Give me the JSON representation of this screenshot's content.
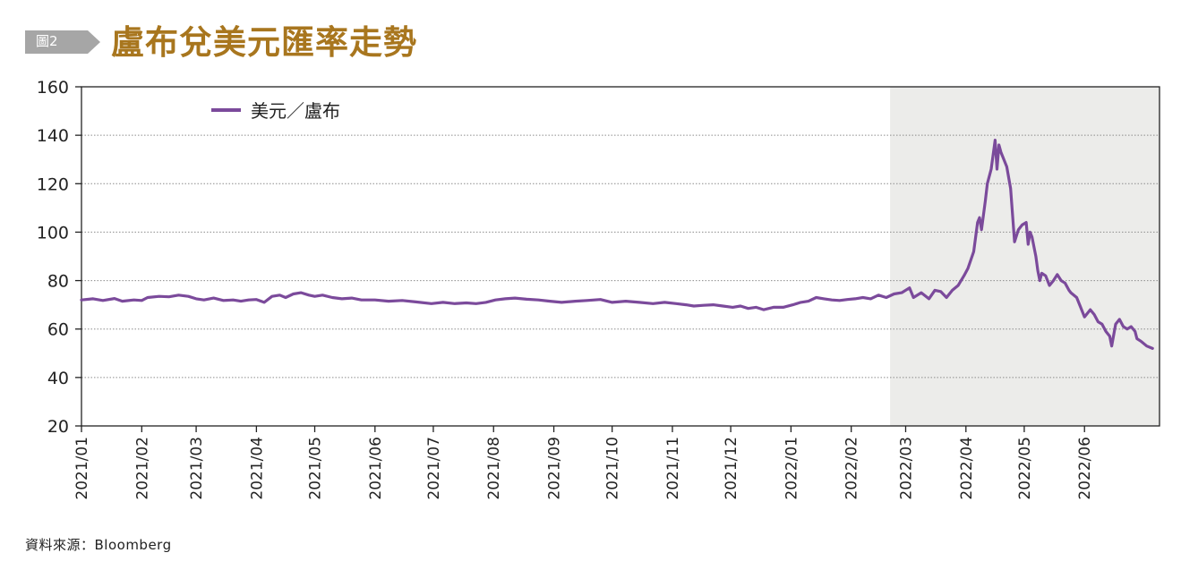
{
  "header": {
    "figure_tag": "圖2",
    "title": "盧布兌美元匯率走勢"
  },
  "source": "資料來源：Bloomberg",
  "colors": {
    "line": "#7b4a9b",
    "shade": "#ececea",
    "title": "#a8761e",
    "tag": "#a6a6a6",
    "grid": "#8c8c8c"
  },
  "chart_data": {
    "type": "line",
    "title": "盧布兌美元匯率走勢",
    "xlabel": "",
    "ylabel": "",
    "ylim": [
      20,
      160
    ],
    "yticks": [
      20,
      40,
      60,
      80,
      100,
      120,
      140,
      160
    ],
    "xticks": [
      "2021/01",
      "2021/02",
      "2021/03",
      "2021/04",
      "2021/05",
      "2021/06",
      "2021/07",
      "2021/08",
      "2021/09",
      "2021/10",
      "2021/11",
      "2021/12",
      "2022/01",
      "2022/02",
      "2022/03",
      "2022/04",
      "2022/05",
      "2022/06"
    ],
    "grid": "horizontal dotted",
    "legend": "top-left",
    "shaded_region": {
      "from": "2022-02-21",
      "to": "2022-06-30"
    },
    "series": [
      {
        "name": "美元／盧布",
        "points": [
          [
            "2021-01-01",
            72.0
          ],
          [
            "2021-01-07",
            72.5
          ],
          [
            "2021-01-12",
            71.8
          ],
          [
            "2021-01-18",
            72.6
          ],
          [
            "2021-01-22",
            71.5
          ],
          [
            "2021-01-28",
            72.0
          ],
          [
            "2021-02-01",
            71.8
          ],
          [
            "2021-02-04",
            73.0
          ],
          [
            "2021-02-10",
            73.5
          ],
          [
            "2021-02-15",
            73.3
          ],
          [
            "2021-02-20",
            74.0
          ],
          [
            "2021-02-25",
            73.5
          ],
          [
            "2021-03-01",
            72.5
          ],
          [
            "2021-03-05",
            72.0
          ],
          [
            "2021-03-10",
            72.8
          ],
          [
            "2021-03-15",
            71.8
          ],
          [
            "2021-03-20",
            72.0
          ],
          [
            "2021-03-24",
            71.5
          ],
          [
            "2021-03-28",
            72.0
          ],
          [
            "2021-04-01",
            72.2
          ],
          [
            "2021-04-05",
            71.0
          ],
          [
            "2021-04-09",
            73.5
          ],
          [
            "2021-04-13",
            74.0
          ],
          [
            "2021-04-16",
            73.0
          ],
          [
            "2021-04-20",
            74.5
          ],
          [
            "2021-04-24",
            75.0
          ],
          [
            "2021-04-28",
            74.0
          ],
          [
            "2021-05-01",
            73.5
          ],
          [
            "2021-05-05",
            74.0
          ],
          [
            "2021-05-10",
            73.0
          ],
          [
            "2021-05-15",
            72.5
          ],
          [
            "2021-05-20",
            72.8
          ],
          [
            "2021-05-25",
            72.0
          ],
          [
            "2021-06-01",
            72.0
          ],
          [
            "2021-06-08",
            71.5
          ],
          [
            "2021-06-15",
            71.8
          ],
          [
            "2021-06-22",
            71.2
          ],
          [
            "2021-06-30",
            70.5
          ],
          [
            "2021-07-06",
            71.0
          ],
          [
            "2021-07-12",
            70.5
          ],
          [
            "2021-07-18",
            70.8
          ],
          [
            "2021-07-23",
            70.5
          ],
          [
            "2021-07-28",
            71.0
          ],
          [
            "2021-08-02",
            72.0
          ],
          [
            "2021-08-07",
            72.5
          ],
          [
            "2021-08-12",
            72.8
          ],
          [
            "2021-08-18",
            72.3
          ],
          [
            "2021-08-24",
            72.0
          ],
          [
            "2021-08-30",
            71.5
          ],
          [
            "2021-09-05",
            71.0
          ],
          [
            "2021-09-12",
            71.5
          ],
          [
            "2021-09-18",
            71.8
          ],
          [
            "2021-09-25",
            72.2
          ],
          [
            "2021-10-01",
            71.0
          ],
          [
            "2021-10-08",
            71.5
          ],
          [
            "2021-10-15",
            71.0
          ],
          [
            "2021-10-22",
            70.5
          ],
          [
            "2021-10-28",
            71.0
          ],
          [
            "2021-11-03",
            70.5
          ],
          [
            "2021-11-08",
            70.0
          ],
          [
            "2021-11-12",
            69.5
          ],
          [
            "2021-11-17",
            69.8
          ],
          [
            "2021-11-22",
            70.0
          ],
          [
            "2021-11-27",
            69.5
          ],
          [
            "2021-12-02",
            69.0
          ],
          [
            "2021-12-06",
            69.5
          ],
          [
            "2021-12-10",
            68.5
          ],
          [
            "2021-12-14",
            69.0
          ],
          [
            "2021-12-18",
            68.0
          ],
          [
            "2021-12-23",
            69.0
          ],
          [
            "2021-12-28",
            69.0
          ],
          [
            "2022-01-02",
            70.0
          ],
          [
            "2022-01-06",
            71.0
          ],
          [
            "2022-01-10",
            71.5
          ],
          [
            "2022-01-14",
            73.0
          ],
          [
            "2022-01-18",
            72.5
          ],
          [
            "2022-01-22",
            72.0
          ],
          [
            "2022-01-26",
            71.8
          ],
          [
            "2022-01-30",
            72.2
          ],
          [
            "2022-02-03",
            72.5
          ],
          [
            "2022-02-07",
            73.0
          ],
          [
            "2022-02-11",
            72.5
          ],
          [
            "2022-02-15",
            74.0
          ],
          [
            "2022-02-19",
            73.0
          ],
          [
            "2022-02-23",
            74.5
          ],
          [
            "2022-02-27",
            75.0
          ],
          [
            "2022-03-03",
            77.0
          ],
          [
            "2022-03-05",
            73.0
          ],
          [
            "2022-03-09",
            75.0
          ],
          [
            "2022-03-13",
            72.5
          ],
          [
            "2022-03-16",
            76.0
          ],
          [
            "2022-03-19",
            75.5
          ],
          [
            "2022-03-22",
            73.0
          ],
          [
            "2022-03-25",
            76.0
          ],
          [
            "2022-03-28",
            78.0
          ],
          [
            "2022-03-31",
            82.0
          ],
          [
            "2022-04-02",
            85.0
          ],
          [
            "2022-04-05",
            92.0
          ],
          [
            "2022-04-07",
            104.0
          ],
          [
            "2022-04-08",
            106.0
          ],
          [
            "2022-04-09",
            101.0
          ],
          [
            "2022-04-11",
            113.0
          ],
          [
            "2022-04-12",
            120.0
          ],
          [
            "2022-04-14",
            126.0
          ],
          [
            "2022-04-15",
            132.0
          ],
          [
            "2022-04-16",
            138.0
          ],
          [
            "2022-04-17",
            126.0
          ],
          [
            "2022-04-18",
            136.0
          ],
          [
            "2022-04-19",
            133.0
          ],
          [
            "2022-04-22",
            127.0
          ],
          [
            "2022-04-24",
            118.0
          ],
          [
            "2022-04-26",
            96.0
          ],
          [
            "2022-04-28",
            101.0
          ],
          [
            "2022-04-30",
            103.0
          ],
          [
            "2022-05-02",
            104.0
          ],
          [
            "2022-05-03",
            95.0
          ],
          [
            "2022-05-04",
            100.0
          ],
          [
            "2022-05-05",
            98.0
          ],
          [
            "2022-05-07",
            90.0
          ],
          [
            "2022-05-08",
            84.0
          ],
          [
            "2022-05-09",
            80.0
          ],
          [
            "2022-05-10",
            83.0
          ],
          [
            "2022-05-12",
            82.0
          ],
          [
            "2022-05-14",
            78.0
          ],
          [
            "2022-05-16",
            80.0
          ],
          [
            "2022-05-18",
            82.5
          ],
          [
            "2022-05-20",
            80.0
          ],
          [
            "2022-05-22",
            79.0
          ],
          [
            "2022-05-24",
            76.0
          ],
          [
            "2022-05-25",
            75.0
          ],
          [
            "2022-05-28",
            73.0
          ],
          [
            "2022-05-30",
            69.0
          ],
          [
            "2022-06-01",
            65.0
          ],
          [
            "2022-06-04",
            68.0
          ],
          [
            "2022-06-06",
            66.0
          ],
          [
            "2022-06-08",
            63.0
          ],
          [
            "2022-06-10",
            62.0
          ],
          [
            "2022-06-12",
            59.0
          ],
          [
            "2022-06-14",
            57.0
          ],
          [
            "2022-06-15",
            53.0
          ],
          [
            "2022-06-17",
            62.0
          ],
          [
            "2022-06-19",
            64.0
          ],
          [
            "2022-06-21",
            61.0
          ],
          [
            "2022-06-23",
            60.0
          ],
          [
            "2022-06-25",
            61.0
          ],
          [
            "2022-06-27",
            59.0
          ],
          [
            "2022-06-28",
            56.0
          ],
          [
            "2022-06-30",
            55.0
          ],
          [
            "2022-07-03",
            53.0
          ],
          [
            "2022-07-06",
            52.0
          ]
        ]
      }
    ]
  }
}
